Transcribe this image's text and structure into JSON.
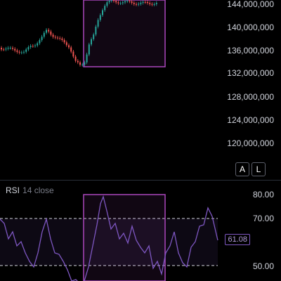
{
  "price_axis": {
    "labels": [
      "144,000,000",
      "140,000,000",
      "136,000,000",
      "132,000,000",
      "128,000,000",
      "124,000,000",
      "120,000,000"
    ]
  },
  "scale_buttons": {
    "auto_label": "A",
    "log_label": "L"
  },
  "rsi": {
    "name": "RSI",
    "params": "14 close",
    "axis_labels": [
      "80.00",
      "70.00",
      "50.00"
    ],
    "current_value": "61.08"
  },
  "colors": {
    "up": "#26a69a",
    "down": "#ef5350",
    "rsi_line": "#7e57c2",
    "highlight": "#ab47bc"
  }
}
